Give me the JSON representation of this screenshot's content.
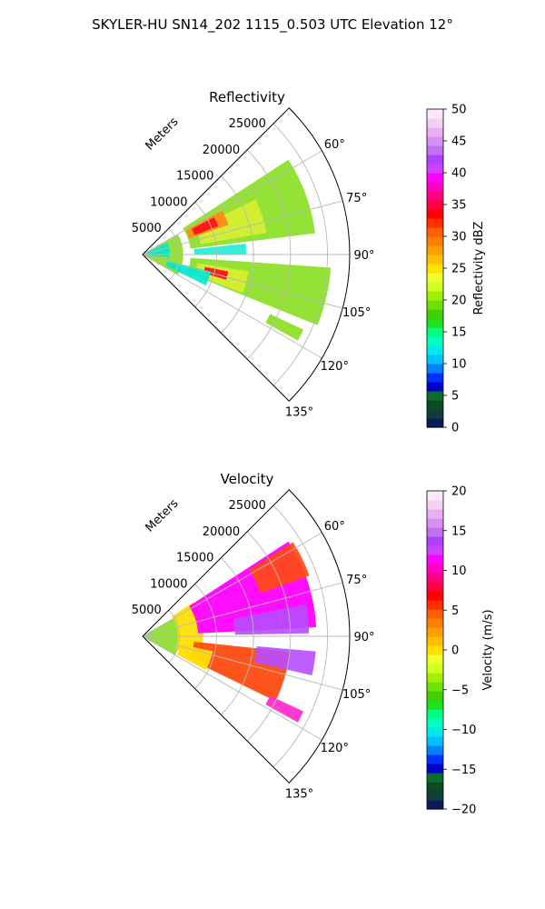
{
  "suptitle": "SKYLER-HU  SN14_202  1115_0.503 UTC Elevation 12°",
  "chart_data": [
    {
      "type": "heatmap",
      "projection": "polar-sector",
      "title": "Reflectivity",
      "radial_label": "Meters",
      "radial_ticks": [
        "5000",
        "10000",
        "15000",
        "20000",
        "25000"
      ],
      "radial_values": [
        5000,
        10000,
        15000,
        20000,
        25000
      ],
      "r_max": 28000,
      "angle_ticks": [
        "60°",
        "75°",
        "90°",
        "105°",
        "120°",
        "135°"
      ],
      "angle_values": [
        60,
        75,
        90,
        105,
        120,
        135
      ],
      "theta_range": [
        45,
        135
      ],
      "grid": true,
      "colorbar": {
        "label": "Reflectivity dBZ",
        "ticks": [
          "0",
          "5",
          "10",
          "15",
          "20",
          "25",
          "30",
          "35",
          "40",
          "45",
          "50"
        ],
        "range": [
          0,
          50
        ],
        "colors": [
          "#0a1a5a",
          "#123c3c",
          "#0d4a24",
          "#0a6e2a",
          "#0000c8",
          "#0030ff",
          "#0080ff",
          "#00c0ff",
          "#00e8e8",
          "#00ffc0",
          "#00ff80",
          "#20e020",
          "#40d000",
          "#70e000",
          "#a0f000",
          "#d0ff20",
          "#f0ff30",
          "#ffe000",
          "#ffc000",
          "#ffa000",
          "#ff8000",
          "#ff6000",
          "#ff3000",
          "#ff0000",
          "#ff0040",
          "#ff0080",
          "#ff00c0",
          "#ff00ff",
          "#d040ff",
          "#b040ff",
          "#c070f0",
          "#d890f0",
          "#e8b0f0",
          "#f4d0f4",
          "#fde8fd"
        ],
        "levels": 35
      },
      "field_palette": {
        "low": "#00e8d0",
        "mid": "#8ee02a",
        "high": "#d8f030",
        "core": "#ff1a1a",
        "core_edge": "#ff8a1a"
      }
    },
    {
      "type": "heatmap",
      "projection": "polar-sector",
      "title": "Velocity",
      "radial_label": "Meters",
      "radial_ticks": [
        "5000",
        "10000",
        "15000",
        "20000",
        "25000"
      ],
      "radial_values": [
        5000,
        10000,
        15000,
        20000,
        25000
      ],
      "r_max": 28000,
      "angle_ticks": [
        "60°",
        "75°",
        "90°",
        "105°",
        "120°",
        "135°"
      ],
      "angle_values": [
        60,
        75,
        90,
        105,
        120,
        135
      ],
      "theta_range": [
        45,
        135
      ],
      "grid": true,
      "colorbar": {
        "label": "Velocity (m/s)",
        "ticks": [
          "−20",
          "−15",
          "−10",
          "−5",
          "0",
          "5",
          "10",
          "15",
          "20"
        ],
        "range": [
          -20,
          20
        ],
        "colors": [
          "#0a1a5a",
          "#123c3c",
          "#0d4a24",
          "#0a6e2a",
          "#0000c8",
          "#0030ff",
          "#0080ff",
          "#00c0ff",
          "#00e8e8",
          "#00ffc0",
          "#00ff80",
          "#20e020",
          "#40d000",
          "#70e000",
          "#a0f000",
          "#d0ff20",
          "#f0ff30",
          "#ffe000",
          "#ffc000",
          "#ffa000",
          "#ff8000",
          "#ff6000",
          "#ff3000",
          "#ff0000",
          "#ff0040",
          "#ff0080",
          "#ff00c0",
          "#ff00ff",
          "#d040ff",
          "#b040ff",
          "#c070f0",
          "#d890f0",
          "#e8b0f0",
          "#f4d0f4",
          "#fde8fd"
        ],
        "levels": 35
      },
      "field_palette": {
        "near": "#8ee02a",
        "inbound": "#ffe000",
        "outbound": "#ff00ff",
        "far": "#b84cff",
        "south": "#ff4a10",
        "band": "#ff2fd0"
      }
    }
  ]
}
